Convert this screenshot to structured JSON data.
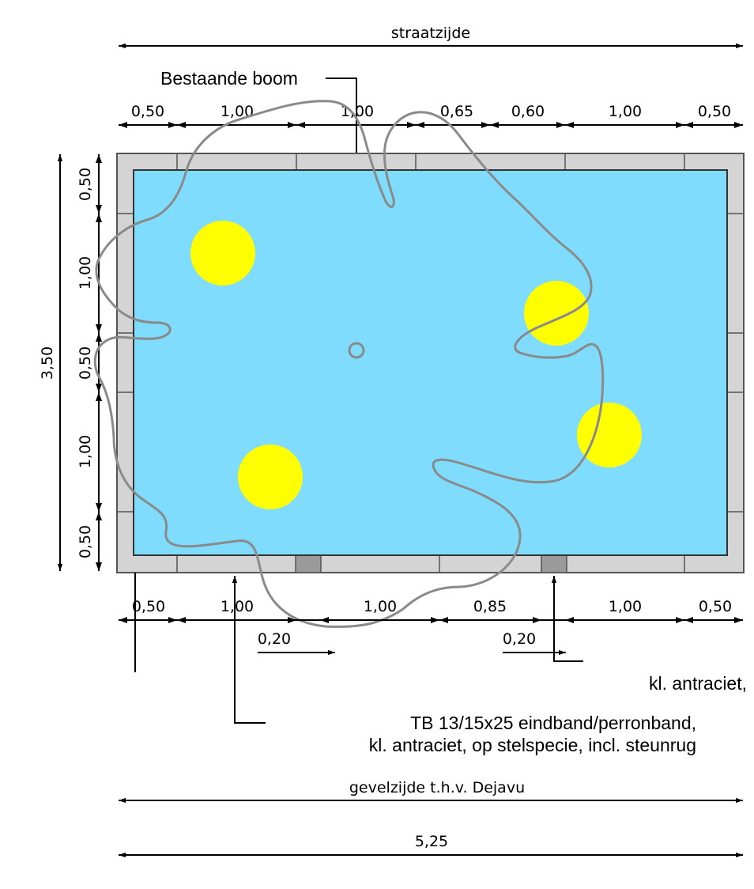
{
  "top_label": "straatzijde",
  "bottom_label": "gevelzijde t.h.v. Dejavu",
  "total_width": "5,25",
  "total_height": "3,50",
  "top_dims": [
    "0,50",
    "1,00",
    "1,00",
    "0,65",
    "0,60",
    "1,00",
    "0,50"
  ],
  "bottom_dims": [
    "0,50",
    "1,00",
    "1,00",
    "0,85",
    "1,00",
    "0,50"
  ],
  "side_dims": [
    "0,50",
    "1,00",
    "0,50",
    "1,00",
    "0,50"
  ],
  "gap_dims": [
    "0,20",
    "0,20"
  ],
  "annotations": {
    "tree": "Bestaande boom",
    "color_note": "kl. antraciet,",
    "curb_line1": "TB 13/15x25 eindband/perronband,",
    "curb_line2": "kl. antraciet, op stelspecie, incl. steunrug"
  },
  "colors": {
    "bed": "#7fdcfc",
    "border": "#d4d4d4",
    "plant": "#ffff00",
    "tree_outline": "#8a8a8a"
  }
}
